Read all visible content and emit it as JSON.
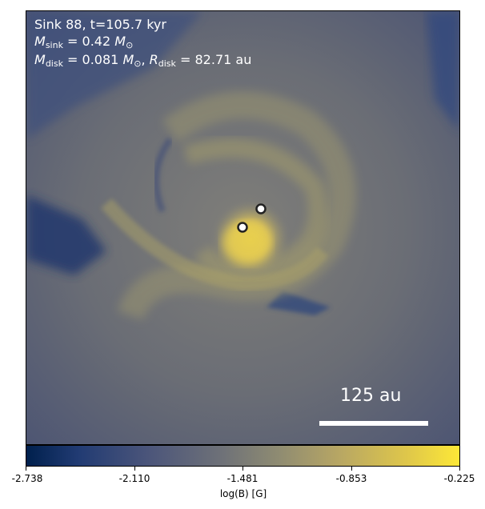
{
  "panel": {
    "sink_line": "Sink 88, t=105.7 kyr",
    "msink_sub": "sink",
    "msink_value": "= 0.42",
    "mdisk_sub": "disk",
    "mdisk_value": "= 0.081",
    "rdisk_sub": "disk",
    "rdisk_value": "= 82.71 au",
    "scale_bar_label": "125 au"
  },
  "colorbar": {
    "label": "log(B) [G]",
    "ticks": [
      "-2.738",
      "-2.110",
      "-1.481",
      "-0.853",
      "-0.225"
    ],
    "min": -2.738,
    "max": -0.225,
    "colormap": "cividis"
  },
  "colors": {
    "low": "#00204d",
    "mid": "#6e7178",
    "high": "#fde837",
    "text": "#ffffff"
  },
  "sink_markers": [
    "sink-1",
    "sink-2"
  ]
}
